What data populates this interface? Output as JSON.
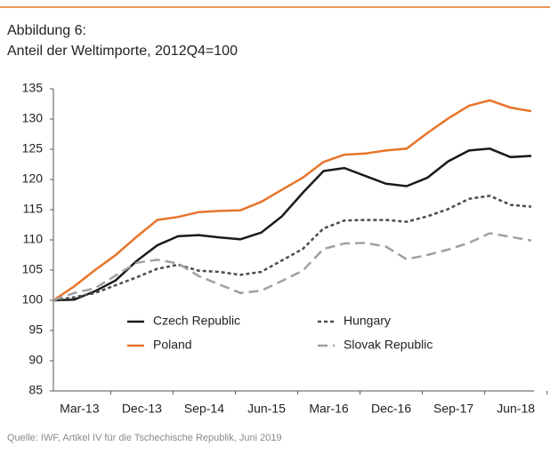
{
  "chart_data": {
    "type": "line",
    "title": "Abbildung 6:",
    "subtitle": "Anteil der Weltimporte, 2012Q4=100",
    "source": "Quelle: IWF, Artikel IV für die Tschechische Republik, Juni 2019",
    "categories": [
      null,
      "Mar-13",
      null,
      null,
      "Dec-13",
      null,
      null,
      "Sep-14",
      null,
      null,
      "Jun-15",
      null,
      null,
      "Mar-16",
      null,
      null,
      "Dec-16",
      null,
      null,
      "Sep-17",
      null,
      null,
      "Jun-18",
      null
    ],
    "ylim": [
      85,
      135
    ],
    "yticks": [
      85,
      90,
      95,
      100,
      105,
      110,
      115,
      120,
      125,
      130,
      135
    ],
    "grid": false,
    "series": [
      {
        "name": "Czech Republic",
        "color": "#1a1a1a",
        "line_style": "solid",
        "values": [
          100,
          100.1,
          101.5,
          103.3,
          106.5,
          109.1,
          110.6,
          110.8,
          110.4,
          110.1,
          111.2,
          113.9,
          117.8,
          121.4,
          121.9,
          120.6,
          119.3,
          118.9,
          120.3,
          123,
          124.8,
          125.1,
          123.7,
          123.9
        ]
      },
      {
        "name": "Hungary",
        "color": "#4d4d4d",
        "line_style": "dashed",
        "values": [
          100,
          100.5,
          101.2,
          102.5,
          103.8,
          105.2,
          105.9,
          104.9,
          104.7,
          104.2,
          104.7,
          106.6,
          108.5,
          111.9,
          113.2,
          113.3,
          113.3,
          113,
          113.9,
          115.1,
          116.8,
          117.3,
          115.8,
          115.5
        ]
      },
      {
        "name": "Poland",
        "color": "#e8742a",
        "line_style": "solid",
        "values": [
          100,
          102.3,
          105,
          107.5,
          110.5,
          113.3,
          113.8,
          114.6,
          114.8,
          114.9,
          116.3,
          118.3,
          120.3,
          122.9,
          124.1,
          124.3,
          124.8,
          125.1,
          127.7,
          130.1,
          132.2,
          133.1,
          131.9,
          131.3
        ]
      },
      {
        "name": "Slovak Republic",
        "color": "#a0a0a0",
        "line_style": "long-dashed",
        "values": [
          100,
          101.2,
          102,
          104.1,
          106.2,
          106.7,
          106.1,
          104,
          102.6,
          101.2,
          101.6,
          103.2,
          104.9,
          108.5,
          109.4,
          109.5,
          108.9,
          106.8,
          107.5,
          108.4,
          109.5,
          111.1,
          110.5,
          109.9
        ]
      }
    ]
  }
}
